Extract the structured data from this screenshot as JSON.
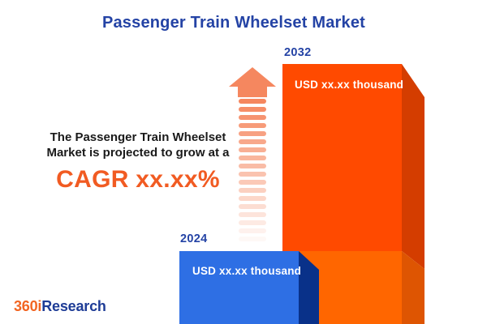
{
  "title": "Passenger Train Wheelset Market",
  "description": {
    "line1": "The Passenger Train Wheelset",
    "line2": "Market is projected to grow at a",
    "cagr": "CAGR xx.xx%"
  },
  "chart_data": {
    "type": "bar",
    "categories": [
      "2024",
      "2032"
    ],
    "values": [
      null,
      null
    ],
    "value_labels": [
      "USD xx.xx thousand",
      "USD xx.xx thousand"
    ],
    "title": "Passenger Train Wheelset Market",
    "annotation": "The Passenger Train Wheelset Market is projected to grow at a CAGR xx.xx%",
    "legend_position": "none",
    "bar_style": "3d-extruded",
    "growth_arrow": "upward striped arrow between annotation and 2032 bar"
  },
  "bars": {
    "b2024": {
      "year": "2024",
      "value_label": "USD xx.xx thousand"
    },
    "b2032": {
      "year": "2032",
      "value_label": "USD xx.xx thousand"
    }
  },
  "arrow": {
    "stripe_count": 18
  },
  "logo": {
    "prefix": "360i",
    "suffix": "Research"
  },
  "colors": {
    "title_blue": "#2443a5",
    "text_black": "#1a1a1a",
    "cagr_orange": "#f15b22",
    "bar2032_front": "#ff4a00",
    "bar2032_front_lower": "#ff6600",
    "bar2032_side": "#d43d00",
    "bar2032_side_lower": "#de5502",
    "bar2024_front": "#2e6fe4",
    "bar2024_side": "#093189",
    "arrow_color": "#f5875f",
    "logo_orange": "#f26522",
    "logo_blue": "#1e3c96",
    "value_text": "#ffffff"
  }
}
